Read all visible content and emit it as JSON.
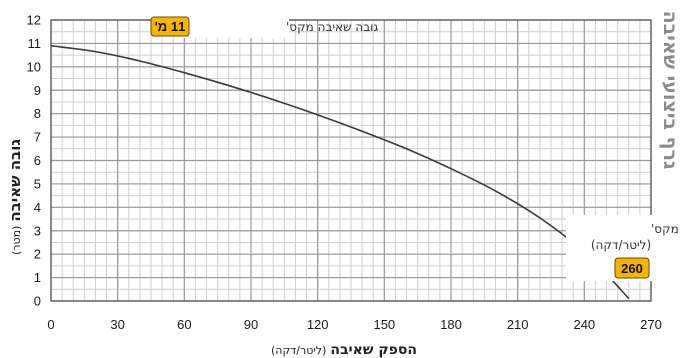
{
  "chart_data": {
    "type": "line",
    "side_title": "גרף ביצועי שאיבה",
    "xlabel": "הספק שאיבה",
    "xunit": "(ליטר/דקה)",
    "ylabel": "גובה שאיבה",
    "yunit": "(מטר)",
    "xlim": [
      0,
      270
    ],
    "ylim": [
      0,
      12
    ],
    "xticks": [
      0,
      30,
      60,
      90,
      120,
      150,
      180,
      210,
      240,
      270
    ],
    "yticks": [
      0,
      1,
      2,
      3,
      4,
      5,
      6,
      7,
      8,
      9,
      10,
      11,
      12
    ],
    "minor_grid_x": 5,
    "minor_grid_y": 0.5,
    "grid": true,
    "series": [
      {
        "color": "#3a3a3a",
        "x": [
          0,
          20,
          40,
          60,
          80,
          100,
          120,
          140,
          160,
          180,
          200,
          220,
          240,
          250,
          260
        ],
        "y": [
          10.9,
          10.65,
          10.25,
          9.75,
          9.2,
          8.6,
          7.95,
          7.25,
          6.5,
          5.65,
          4.7,
          3.55,
          2.1,
          1.15,
          0.1
        ]
      }
    ],
    "annotations": {
      "max_height": {
        "label": "גובה שאיבה מקס'",
        "value": "11 מ'"
      },
      "max_flow": {
        "label": "הספק שאיבה מקס'",
        "unit": "(ליטר/דקה)",
        "value": "260"
      }
    },
    "badge_color": "#f5b400"
  }
}
